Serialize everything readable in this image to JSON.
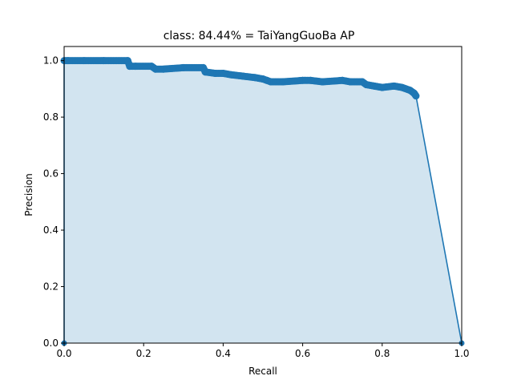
{
  "chart_data": {
    "type": "line",
    "title": "class: 84.44% = TaiYangGuoBa AP",
    "xlabel": "Recall",
    "ylabel": "Precision",
    "xlim": [
      0.0,
      1.0
    ],
    "ylim": [
      0.0,
      1.05
    ],
    "grid": false,
    "legend": "none",
    "x_ticks": [
      "0.0",
      "0.2",
      "0.4",
      "0.6",
      "0.8",
      "1.0"
    ],
    "y_ticks": [
      "0.0",
      "0.2",
      "0.4",
      "0.6",
      "0.8",
      "1.0"
    ],
    "colors": {
      "line": "#1f77b4",
      "fill": "#1f77b4"
    },
    "series": [
      {
        "x": [
          0.0,
          0.0,
          0.01,
          0.05,
          0.1,
          0.16,
          0.165,
          0.18,
          0.22,
          0.23,
          0.25,
          0.3,
          0.35,
          0.355,
          0.38,
          0.4,
          0.42,
          0.45,
          0.48,
          0.5,
          0.51,
          0.52,
          0.55,
          0.6,
          0.62,
          0.65,
          0.7,
          0.72,
          0.75,
          0.76,
          0.78,
          0.8,
          0.83,
          0.85,
          0.87,
          0.88,
          0.885,
          1.0,
          1.0
        ],
        "y": [
          0.0,
          1.0,
          1.0,
          1.0,
          1.0,
          1.0,
          0.98,
          0.98,
          0.98,
          0.97,
          0.97,
          0.975,
          0.975,
          0.96,
          0.955,
          0.955,
          0.95,
          0.945,
          0.94,
          0.935,
          0.93,
          0.925,
          0.925,
          0.93,
          0.93,
          0.925,
          0.93,
          0.925,
          0.925,
          0.915,
          0.91,
          0.905,
          0.91,
          0.905,
          0.895,
          0.885,
          0.875,
          0.0,
          0.0
        ]
      }
    ]
  }
}
